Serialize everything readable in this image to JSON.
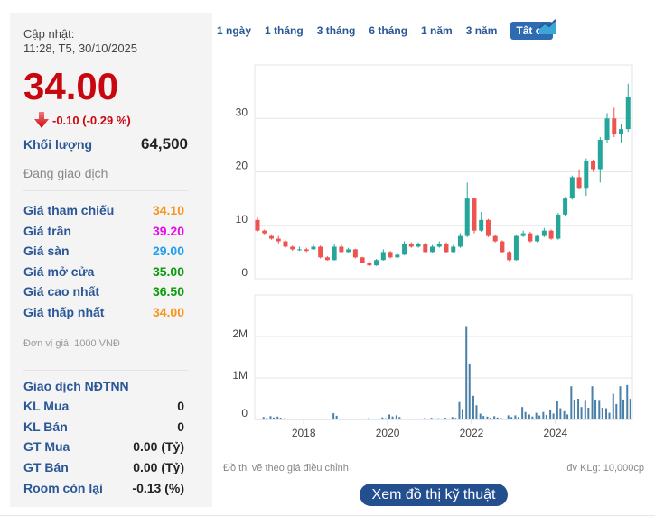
{
  "quote": {
    "updated_label": "Cập nhật:",
    "updated_time": "11:28, T5, 30/10/2025",
    "price": "34.00",
    "change": "-0.10 (-0.29 %)",
    "volume_label": "Khối lượng",
    "volume": "64,500",
    "status": "Đang giao dịch",
    "down_color": "#c9070f"
  },
  "prices": [
    {
      "label": "Giá tham chiếu",
      "value": "34.10",
      "color": "#f7941d"
    },
    {
      "label": "Giá trần",
      "value": "39.20",
      "color": "#e80ae8"
    },
    {
      "label": "Giá sàn",
      "value": "29.00",
      "color": "#1ea1ef"
    },
    {
      "label": "Giá mở cửa",
      "value": "35.00",
      "color": "#0a9a0a"
    },
    {
      "label": "Giá cao nhất",
      "value": "36.50",
      "color": "#0a9a0a"
    },
    {
      "label": "Giá thấp nhất",
      "value": "34.00",
      "color": "#f7941d"
    }
  ],
  "unit": "Đơn vị giá: 1000 VNĐ",
  "foreign": {
    "title": "Giao dịch NĐTNN",
    "rows": [
      {
        "label": "KL Mua",
        "value": "0"
      },
      {
        "label": "KL Bán",
        "value": "0"
      },
      {
        "label": "GT Mua",
        "value": "0.00 (Tỷ)"
      },
      {
        "label": "GT Bán",
        "value": "0.00 (Tỷ)"
      },
      {
        "label": "Room còn lại",
        "value": "-0.13 (%)"
      }
    ]
  },
  "tabs": [
    {
      "label": "1 ngày"
    },
    {
      "label": "1 tháng"
    },
    {
      "label": "3 tháng"
    },
    {
      "label": "6 tháng"
    },
    {
      "label": "1 năm"
    },
    {
      "label": "3 năm"
    },
    {
      "label": "Tất cả",
      "active": true
    }
  ],
  "footer": {
    "note": "Đồ thị vẽ theo giá điều chỉnh",
    "unit": "đv KLg: 10,000cp",
    "button": "Xem đồ thị kỹ thuật"
  },
  "chart_data": {
    "type": "candlestick",
    "price_yticks": [
      "0",
      "10",
      "20",
      "30"
    ],
    "price_ylim": [
      0,
      40
    ],
    "volume_yticks": [
      "0",
      "1M",
      "2M"
    ],
    "volume_ylim": [
      0,
      3
    ],
    "xticks": [
      "2018",
      "2020",
      "2022",
      "2024"
    ],
    "xlim": [
      "2016-11",
      "2025-11"
    ],
    "up_color": "#26a69a",
    "down_color": "#ef5350",
    "volume_color": "#4a7fa8",
    "candles": [
      [
        "2016-11",
        11,
        11.5,
        8.8,
        9
      ],
      [
        "2017-01",
        9,
        9.2,
        8.3,
        8.5
      ],
      [
        "2017-03",
        8,
        8.3,
        7.3,
        7.5
      ],
      [
        "2017-05",
        7.5,
        8,
        6.6,
        7
      ],
      [
        "2017-07",
        7,
        7.2,
        5.8,
        6
      ],
      [
        "2017-09",
        6,
        6.2,
        5.2,
        5.5
      ],
      [
        "2017-11",
        5.5,
        6,
        5.2,
        5.5
      ],
      [
        "2018-01",
        5.5,
        5.8,
        5,
        5.2
      ],
      [
        "2018-03",
        5.5,
        6.5,
        5.4,
        6
      ],
      [
        "2018-05",
        6,
        6.2,
        3.8,
        4
      ],
      [
        "2018-07",
        4,
        4.2,
        3.4,
        3.5
      ],
      [
        "2018-09",
        3.5,
        6.5,
        3.4,
        6
      ],
      [
        "2018-11",
        6,
        6.4,
        4.8,
        5
      ],
      [
        "2019-01",
        5,
        5.8,
        4.8,
        5.5
      ],
      [
        "2019-03",
        5.5,
        5.6,
        3.8,
        4
      ],
      [
        "2019-05",
        4,
        4.1,
        2.9,
        3
      ],
      [
        "2019-07",
        3,
        3.2,
        2.3,
        2.5
      ],
      [
        "2019-09",
        2.5,
        3.7,
        2.4,
        3.5
      ],
      [
        "2019-11",
        3.5,
        5.5,
        3.4,
        5
      ],
      [
        "2020-01",
        5,
        5.2,
        3.8,
        4
      ],
      [
        "2020-03",
        4,
        4.8,
        3.8,
        4.5
      ],
      [
        "2020-05",
        4.5,
        7,
        4.4,
        6.5
      ],
      [
        "2020-07",
        6.5,
        6.8,
        5.8,
        6
      ],
      [
        "2020-09",
        6,
        6.8,
        5.8,
        6.5
      ],
      [
        "2020-11",
        6.5,
        6.7,
        4.8,
        5
      ],
      [
        "2021-01",
        5,
        6.3,
        4.8,
        6
      ],
      [
        "2021-03",
        6,
        7,
        5.8,
        6.5
      ],
      [
        "2021-05",
        6.5,
        6.8,
        4.8,
        5
      ],
      [
        "2021-07",
        5,
        6.3,
        4.8,
        6
      ],
      [
        "2021-09",
        6,
        8.5,
        5.8,
        8
      ],
      [
        "2021-11",
        8,
        18,
        7.8,
        15
      ],
      [
        "2022-01",
        15,
        15.2,
        8.5,
        9
      ],
      [
        "2022-03",
        9,
        12.5,
        8.8,
        11
      ],
      [
        "2022-05",
        11,
        11.2,
        7.8,
        8
      ],
      [
        "2022-07",
        8,
        8.3,
        6.8,
        7
      ],
      [
        "2022-09",
        7,
        7.2,
        4.8,
        5
      ],
      [
        "2022-11",
        5,
        5.2,
        3.3,
        3.5
      ],
      [
        "2023-01",
        3.5,
        8.3,
        3.4,
        8
      ],
      [
        "2023-03",
        8,
        9,
        7.8,
        8.5
      ],
      [
        "2023-05",
        8.5,
        8.8,
        6.8,
        7
      ],
      [
        "2023-07",
        7,
        8.3,
        6.8,
        8
      ],
      [
        "2023-09",
        8,
        9.5,
        7.8,
        9
      ],
      [
        "2023-11",
        9,
        9.2,
        7.3,
        7.5
      ],
      [
        "2024-01",
        7.5,
        12.3,
        7.3,
        12
      ],
      [
        "2024-03",
        12,
        15.3,
        11.8,
        15
      ],
      [
        "2024-05",
        15,
        19.3,
        14.8,
        19
      ],
      [
        "2024-07",
        19,
        20.5,
        16.8,
        17
      ],
      [
        "2024-09",
        17,
        22.5,
        15.5,
        22
      ],
      [
        "2024-11",
        22,
        22.3,
        20,
        20.5
      ],
      [
        "2025-01",
        20.5,
        26.5,
        18,
        26
      ],
      [
        "2025-03",
        26,
        31,
        25.5,
        30
      ],
      [
        "2025-05",
        30,
        32,
        26.5,
        27
      ],
      [
        "2025-07",
        27,
        29,
        25.5,
        28
      ],
      [
        "2025-09",
        28,
        36.5,
        27.5,
        34
      ]
    ],
    "volumes": [
      [
        "2016-11",
        0.02
      ],
      [
        "2017-01",
        0.06
      ],
      [
        "2017-03",
        0.08
      ],
      [
        "2017-05",
        0.07
      ],
      [
        "2017-07",
        0.03
      ],
      [
        "2017-09",
        0.02
      ],
      [
        "2017-11",
        0.02
      ],
      [
        "2018-01",
        0.01
      ],
      [
        "2018-03",
        0.01
      ],
      [
        "2018-05",
        0.01
      ],
      [
        "2018-07",
        0.02
      ],
      [
        "2018-09",
        0.15
      ],
      [
        "2018-11",
        0.01
      ],
      [
        "2019-01",
        0
      ],
      [
        "2019-03",
        0
      ],
      [
        "2019-05",
        0.01
      ],
      [
        "2019-07",
        0.03
      ],
      [
        "2019-09",
        0.02
      ],
      [
        "2019-11",
        0.05
      ],
      [
        "2020-01",
        0.12
      ],
      [
        "2020-03",
        0.1
      ],
      [
        "2020-05",
        0.01
      ],
      [
        "2020-07",
        0.01
      ],
      [
        "2020-09",
        0
      ],
      [
        "2020-11",
        0.03
      ],
      [
        "2021-01",
        0.04
      ],
      [
        "2021-03",
        0.03
      ],
      [
        "2021-05",
        0.04
      ],
      [
        "2021-07",
        0.06
      ],
      [
        "2021-09",
        0.42
      ],
      [
        "2021-11",
        2.25
      ],
      [
        "2022-01",
        0.57
      ],
      [
        "2022-03",
        0.14
      ],
      [
        "2022-05",
        0.07
      ],
      [
        "2022-07",
        0.08
      ],
      [
        "2022-09",
        0.03
      ],
      [
        "2022-11",
        0.1
      ],
      [
        "2023-01",
        0.1
      ],
      [
        "2023-03",
        0.3
      ],
      [
        "2023-05",
        0.12
      ],
      [
        "2023-07",
        0.16
      ],
      [
        "2023-09",
        0.18
      ],
      [
        "2023-11",
        0.24
      ],
      [
        "2024-01",
        0.45
      ],
      [
        "2024-03",
        0.2
      ],
      [
        "2024-05",
        0.8
      ],
      [
        "2024-07",
        0.5
      ],
      [
        "2024-09",
        0.47
      ],
      [
        "2024-11",
        0.8
      ],
      [
        "2025-01",
        0.47
      ],
      [
        "2025-03",
        0.27
      ],
      [
        "2025-05",
        0.62
      ],
      [
        "2025-07",
        0.8
      ],
      [
        "2025-09",
        0.83
      ]
    ]
  }
}
